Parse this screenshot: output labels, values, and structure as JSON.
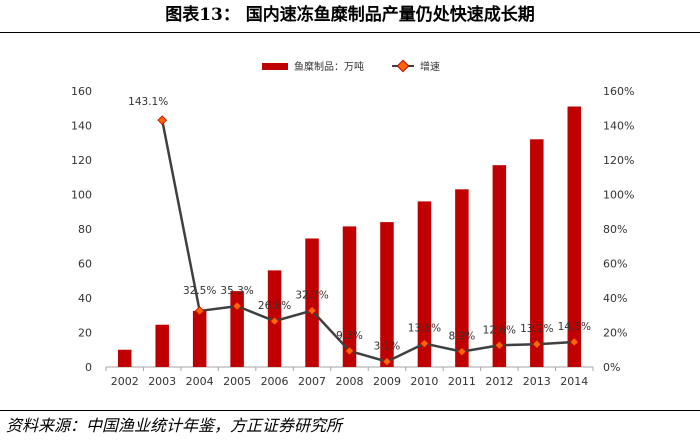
{
  "figure": {
    "title": "图表13：  国内速冻鱼糜制品产量仍处快速成长期",
    "source": "资料来源：中国渔业统计年鉴，方正证券研究所"
  },
  "colors": {
    "bar": "#c00000",
    "line": "#404040",
    "marker_fill": "#ff6600",
    "marker_edge": "#c00000",
    "axis": "#a6a6a6"
  },
  "chart_data": {
    "type": "bar+line",
    "categories": [
      "2002",
      "2003",
      "2004",
      "2005",
      "2006",
      "2007",
      "2008",
      "2009",
      "2010",
      "2011",
      "2012",
      "2013",
      "2014"
    ],
    "series": [
      {
        "name": "鱼糜制品：万吨",
        "type": "bar",
        "axis": "left",
        "values": [
          10,
          24.5,
          32.5,
          44,
          56,
          74.5,
          81.5,
          84,
          96,
          103,
          117,
          132,
          151
        ]
      },
      {
        "name": "增速",
        "type": "line",
        "axis": "right",
        "values": [
          null,
          143.1,
          32.5,
          35.3,
          26.6,
          32.7,
          9.3,
          3.1,
          13.6,
          8.9,
          12.6,
          13.2,
          14.5
        ],
        "labels": [
          "",
          "143.1%",
          "32.5%",
          "35.3%",
          "26.6%",
          "32.7%",
          "9.3%",
          "3.1%",
          "13.6%",
          "8.9%",
          "12.6%",
          "13.2%",
          "14.5%"
        ]
      }
    ],
    "y_left": {
      "min": 0,
      "max": 160,
      "ticks": [
        "0",
        "20",
        "40",
        "60",
        "80",
        "100",
        "120",
        "140",
        "160"
      ]
    },
    "y_right": {
      "min": 0,
      "max": 160,
      "ticks": [
        "0%",
        "20%",
        "40%",
        "60%",
        "80%",
        "100%",
        "120%",
        "140%",
        "160%"
      ]
    },
    "legend": {
      "position": "top-center"
    },
    "grid": false
  }
}
